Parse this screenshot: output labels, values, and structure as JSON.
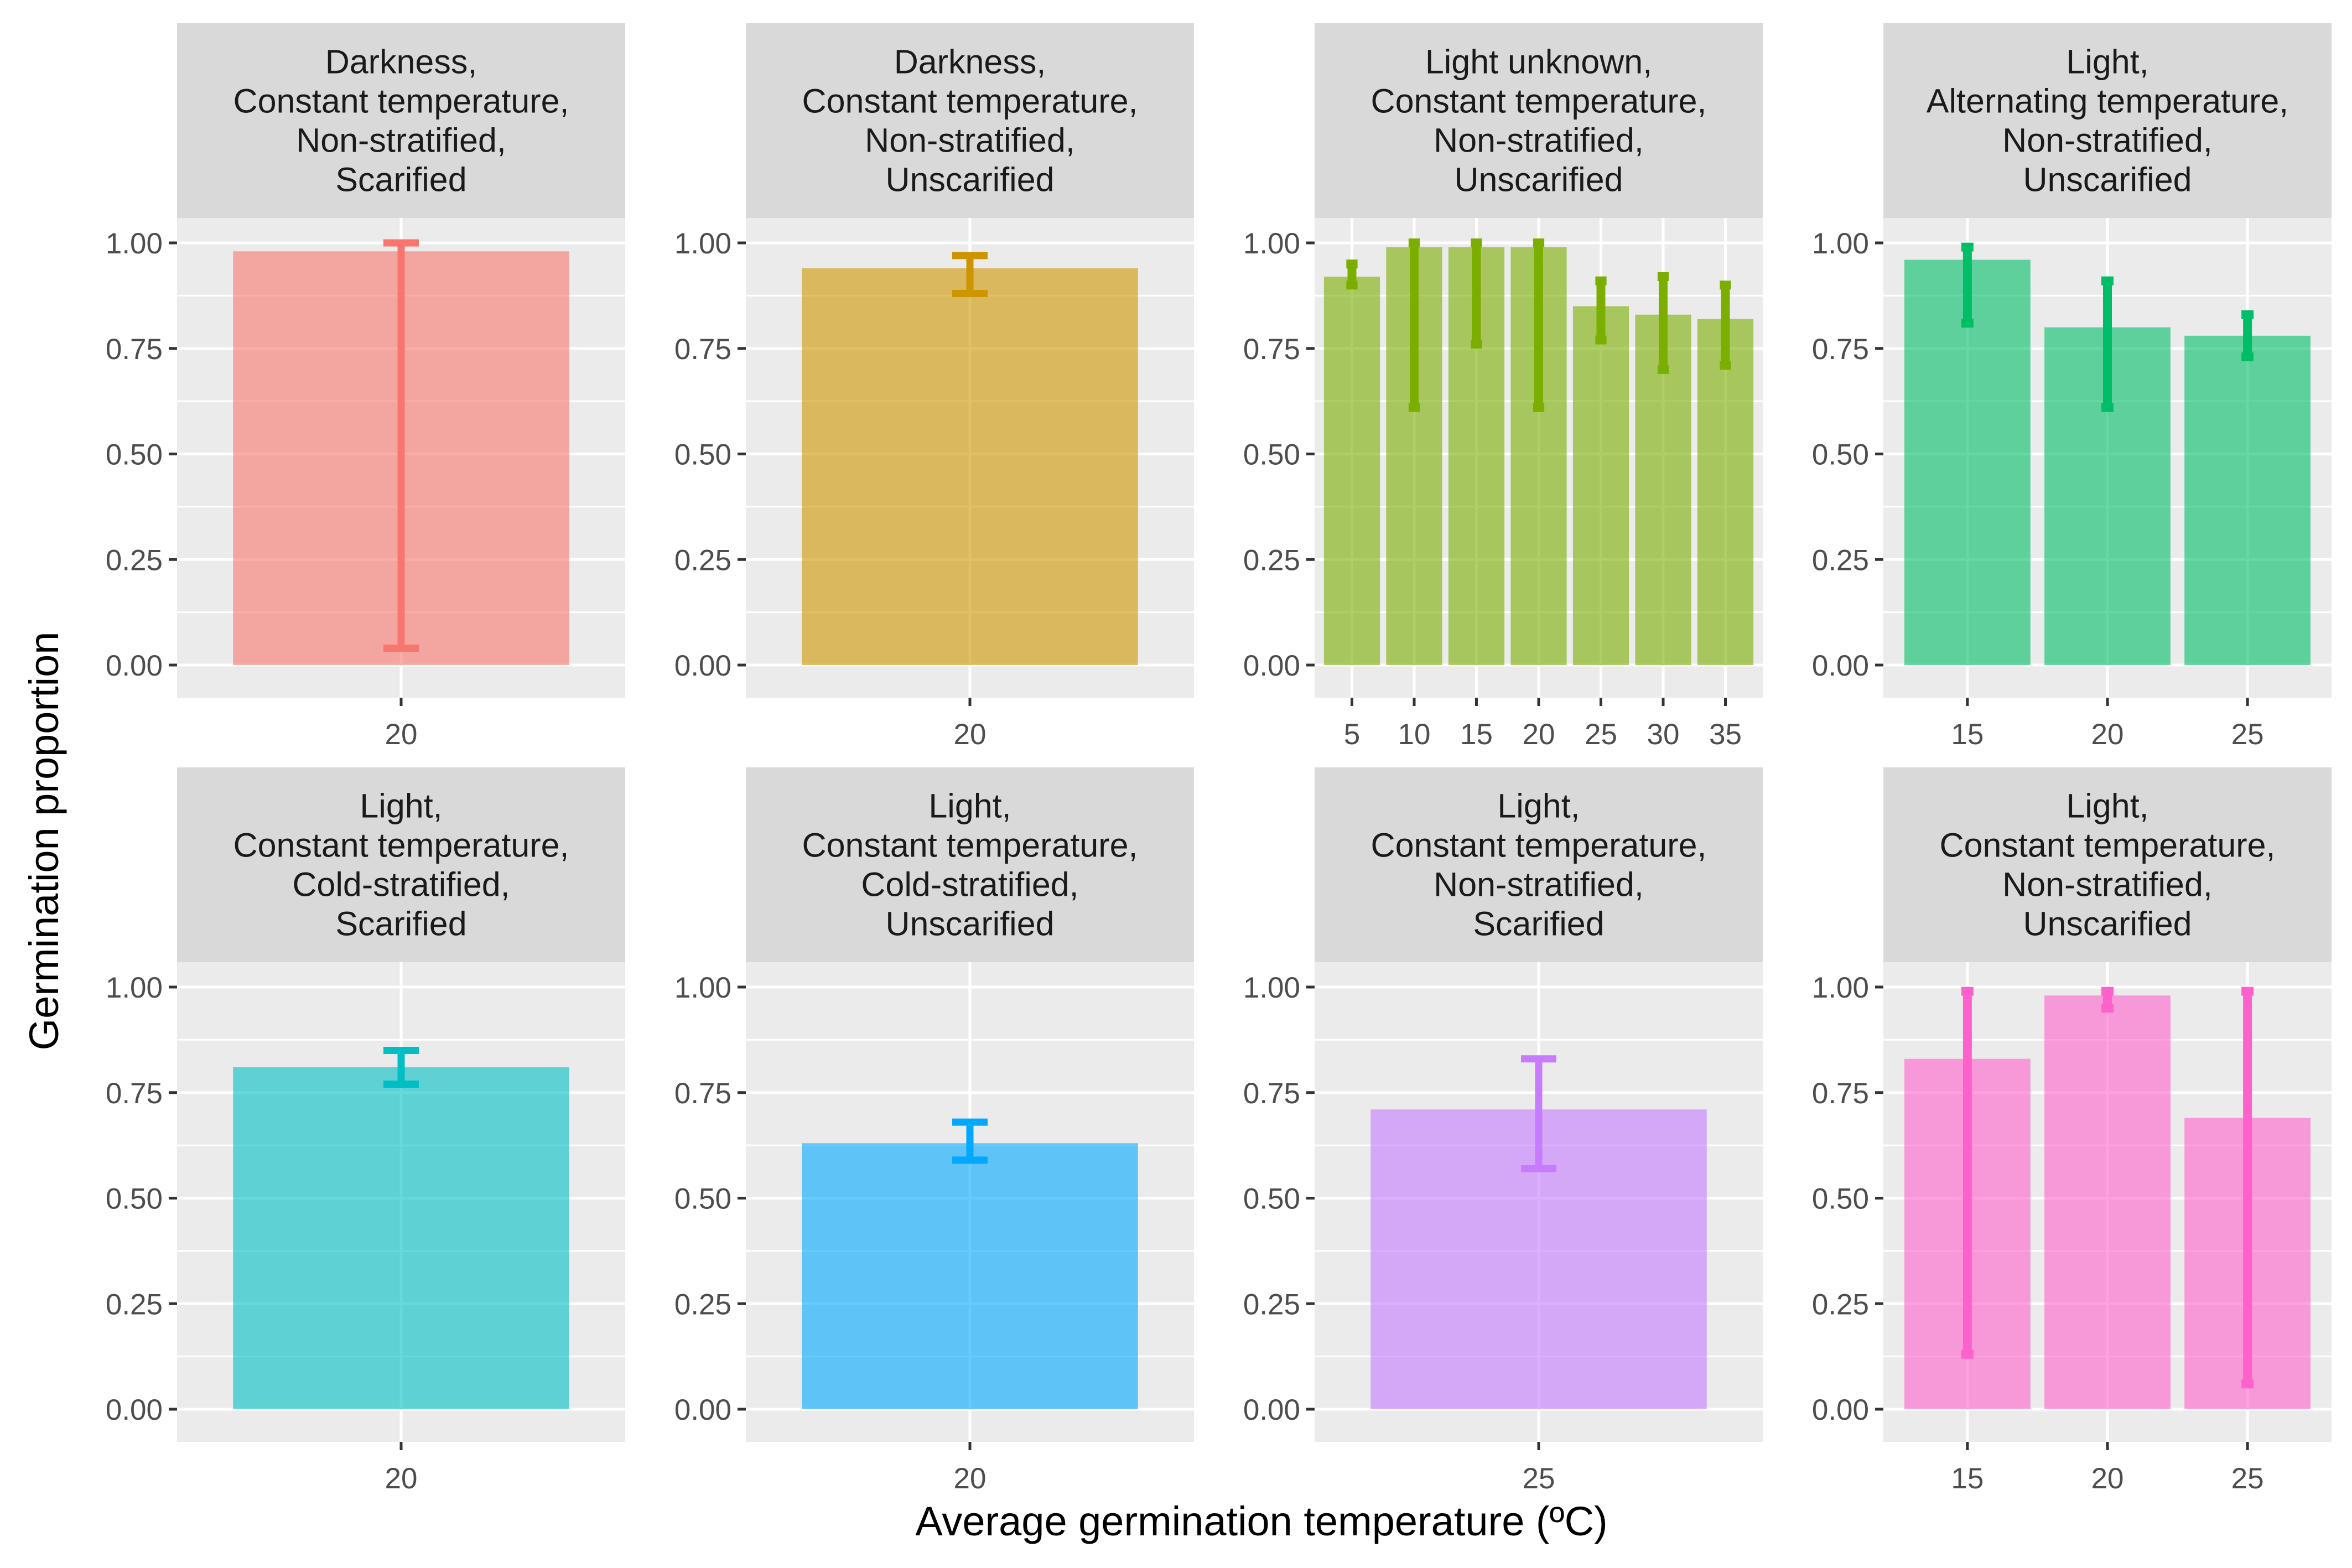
{
  "chart_data": {
    "type": "bar",
    "layout": "facet_wrap 4x2",
    "xlabel": "Average germination temperature (ºC)",
    "ylabel": "Germination proportion",
    "ylim": [
      0,
      1
    ],
    "yticks": [
      "0.00",
      "0.25",
      "0.50",
      "0.75",
      "1.00"
    ],
    "grid": true,
    "legend": "none",
    "panels": [
      {
        "strip": [
          "Darkness,",
          "Constant temperature,",
          "Non-stratified,",
          "Scarified"
        ],
        "color": "#F8766D",
        "categories": [
          "20"
        ],
        "values": [
          0.98
        ],
        "lower": [
          0.04
        ],
        "upper": [
          1.0
        ]
      },
      {
        "strip": [
          "Darkness,",
          "Constant temperature,",
          "Non-stratified,",
          "Unscarified"
        ],
        "color": "#CD9600",
        "categories": [
          "20"
        ],
        "values": [
          0.94
        ],
        "lower": [
          0.88
        ],
        "upper": [
          0.97
        ]
      },
      {
        "strip": [
          "Light unknown,",
          "Constant temperature,",
          "Non-stratified,",
          "Unscarified"
        ],
        "color": "#7CAE00",
        "categories": [
          "5",
          "10",
          "15",
          "20",
          "25",
          "30",
          "35"
        ],
        "values": [
          0.92,
          0.99,
          0.99,
          0.99,
          0.85,
          0.83,
          0.82
        ],
        "lower": [
          0.9,
          0.61,
          0.76,
          0.61,
          0.77,
          0.7,
          0.71
        ],
        "upper": [
          0.95,
          1.0,
          1.0,
          1.0,
          0.91,
          0.92,
          0.9
        ]
      },
      {
        "strip": [
          "Light,",
          "Alternating temperature,",
          "Non-stratified,",
          "Unscarified"
        ],
        "color": "#00BE67",
        "categories": [
          "15",
          "20",
          "25"
        ],
        "values": [
          0.96,
          0.8,
          0.78
        ],
        "lower": [
          0.81,
          0.61,
          0.73
        ],
        "upper": [
          0.99,
          0.91,
          0.83
        ]
      },
      {
        "strip": [
          "Light,",
          "Constant temperature,",
          "Cold-stratified,",
          "Scarified"
        ],
        "color": "#00BFC4",
        "categories": [
          "20"
        ],
        "values": [
          0.81
        ],
        "lower": [
          0.77
        ],
        "upper": [
          0.85
        ]
      },
      {
        "strip": [
          "Light,",
          "Constant temperature,",
          "Cold-stratified,",
          "Unscarified"
        ],
        "color": "#00A9FF",
        "categories": [
          "20"
        ],
        "values": [
          0.63
        ],
        "lower": [
          0.59
        ],
        "upper": [
          0.68
        ]
      },
      {
        "strip": [
          "Light,",
          "Constant temperature,",
          "Non-stratified,",
          "Scarified"
        ],
        "color": "#C77CFF",
        "categories": [
          "25"
        ],
        "values": [
          0.71
        ],
        "lower": [
          0.57
        ],
        "upper": [
          0.83
        ]
      },
      {
        "strip": [
          "Light,",
          "Constant temperature,",
          "Non-stratified,",
          "Unscarified"
        ],
        "color": "#FF61CC",
        "categories": [
          "15",
          "20",
          "25"
        ],
        "values": [
          0.83,
          0.98,
          0.69
        ],
        "lower": [
          0.13,
          0.95,
          0.06
        ],
        "upper": [
          0.99,
          0.99,
          0.99
        ]
      }
    ]
  }
}
